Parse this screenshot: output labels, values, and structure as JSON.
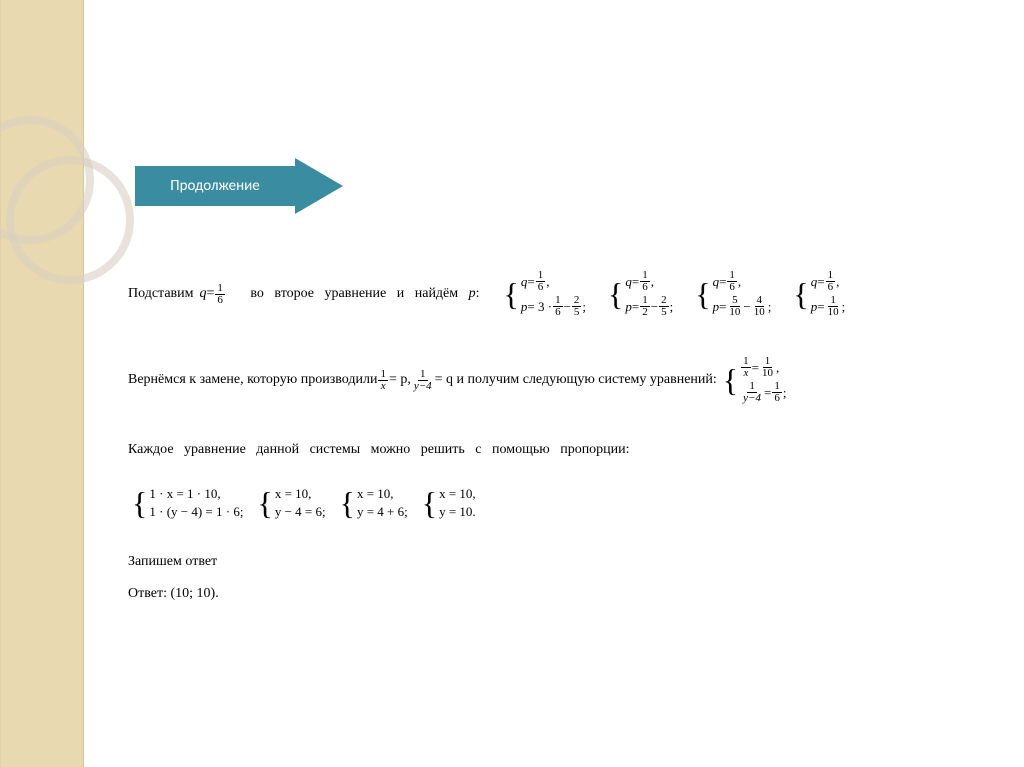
{
  "colors": {
    "sidebar": "#e9d9b0",
    "arrow": "#3a8ca0",
    "arrow_text": "#ffffff",
    "text": "#000000",
    "circle_stroke": "#d8cfc1",
    "background": "#ffffff"
  },
  "arrow": {
    "label": "Продолжение"
  },
  "line1": {
    "pre": "Подставим ",
    "q": "q",
    "eq": " = ",
    "frac_q": {
      "num": "1",
      "den": "6"
    },
    "mid": "   во   второе   уравнение   и   найдём   ",
    "p": "p",
    "colon": ":"
  },
  "systems1": [
    {
      "r1_lhs": "q",
      "r1_eq": " = ",
      "r1_frac": {
        "num": "1",
        "den": "6"
      },
      "r1_end": ",",
      "r2_lhs": "p",
      "r2_eq": " = 3 · ",
      "r2_f1": {
        "num": "1",
        "den": "6"
      },
      "r2_mid": " − ",
      "r2_f2": {
        "num": "2",
        "den": "5"
      },
      "r2_end": ";"
    },
    {
      "r1_lhs": "q",
      "r1_eq": " = ",
      "r1_frac": {
        "num": "1",
        "den": "6"
      },
      "r1_end": ",",
      "r2_lhs": "p",
      "r2_eq": " = ",
      "r2_f1": {
        "num": "1",
        "den": "2"
      },
      "r2_mid": " − ",
      "r2_f2": {
        "num": "2",
        "den": "5"
      },
      "r2_end": ";"
    },
    {
      "r1_lhs": "q",
      "r1_eq": " = ",
      "r1_frac": {
        "num": "1",
        "den": "6"
      },
      "r1_end": ",",
      "r2_lhs": "p",
      "r2_eq": " = ",
      "r2_f1": {
        "num": "5",
        "den": "10"
      },
      "r2_mid": " − ",
      "r2_f2": {
        "num": "4",
        "den": "10"
      },
      "r2_end": ";"
    },
    {
      "r1_lhs": "q",
      "r1_eq": " = ",
      "r1_frac": {
        "num": "1",
        "den": "6"
      },
      "r1_end": ",",
      "r2_lhs": "p",
      "r2_eq": " = ",
      "r2_f1": {
        "num": "1",
        "den": "10"
      },
      "r2_mid": "",
      "r2_f2": null,
      "r2_end": ";"
    }
  ],
  "line2": {
    "pre": "Вернёмся к замене, которую производили ",
    "f1": {
      "num": "1",
      "den": "x"
    },
    "mid1": " = p, ",
    "f2": {
      "num": "1",
      "den": "y−4"
    },
    "mid2": " = q и получим следующую систему   уравнений:"
  },
  "system2": {
    "r1_f1": {
      "num": "1",
      "den": "x"
    },
    "r1_eq": " = ",
    "r1_f2": {
      "num": "1",
      "den": "10"
    },
    "r1_end": ",",
    "r2_f1": {
      "num": "1",
      "den": "y−4"
    },
    "r2_eq": " = ",
    "r2_f2": {
      "num": "1",
      "den": "6"
    },
    "r2_end": ";"
  },
  "line3": "Каждое   уравнение   данной   системы   можно   решить   с   помощью   пропорции:",
  "systems3": [
    {
      "r1": "1 · x = 1 · 10,",
      "r2": "1 · (y − 4) = 1 · 6;"
    },
    {
      "r1": "x = 10,",
      "r2": "y − 4 = 6;"
    },
    {
      "r1": "x = 10,",
      "r2": "y = 4 + 6;"
    },
    {
      "r1": "x = 10,",
      "r2": "y = 10."
    }
  ],
  "line5": "Запишем ответ",
  "line6": "Ответ: (10; 10)."
}
